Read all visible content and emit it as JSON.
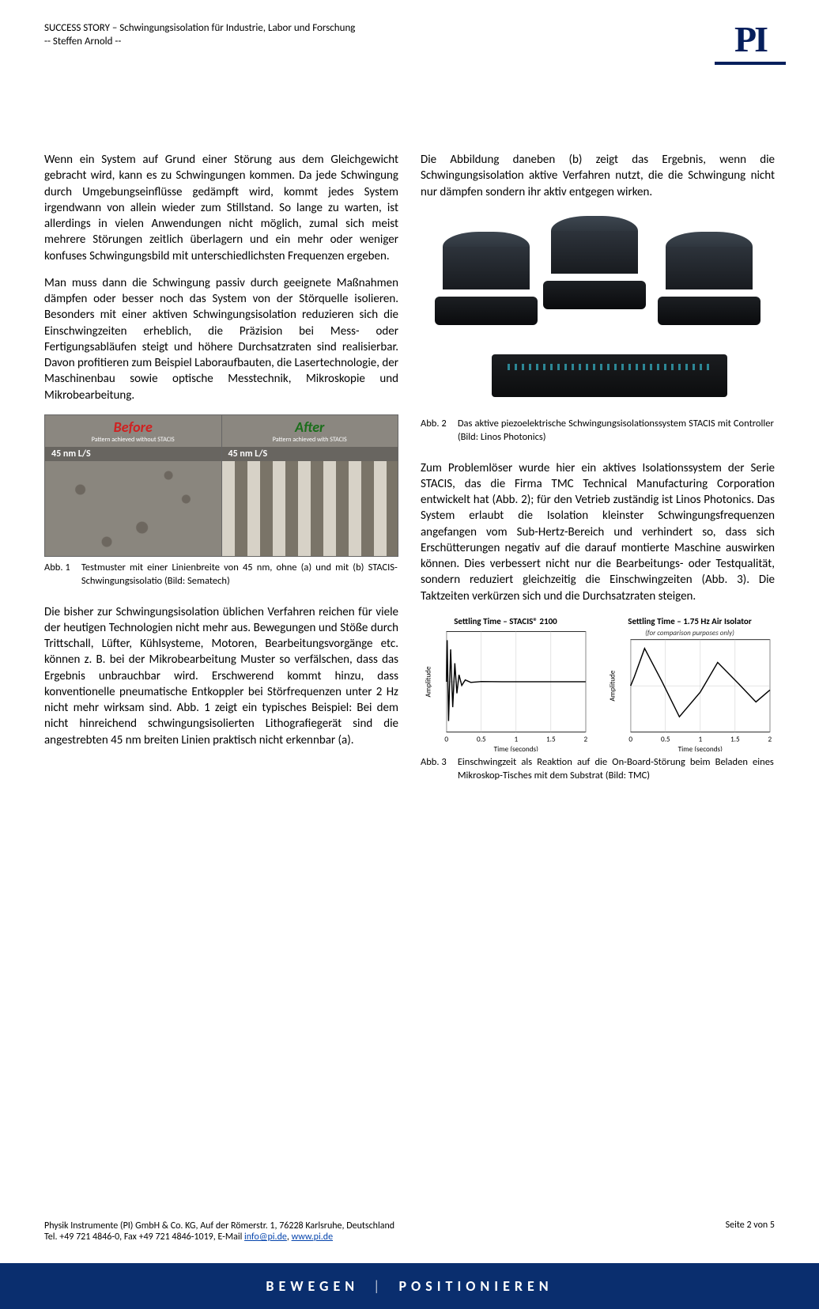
{
  "header": {
    "title": "SUCCESS STORY – Schwingungsisolation für Industrie, Labor und Forschung",
    "author": "-- Steffen Arnold --",
    "logo": "PI"
  },
  "left": {
    "p1": "Wenn ein System auf Grund einer Störung aus dem Gleichgewicht gebracht wird, kann es zu Schwingungen kommen. Da jede Schwingung durch Umgebungseinflüsse gedämpft wird, kommt jedes System irgendwann von allein wieder zum Stillstand. So lange zu warten, ist allerdings in vielen Anwendungen nicht möglich, zumal sich meist mehrere Störungen zeitlich überlagern und ein mehr oder weniger konfuses Schwingungsbild mit unterschiedlichsten Frequenzen ergeben.",
    "p2": "Man muss dann die Schwingung passiv durch geeignete Maßnahmen dämpfen oder besser noch das System von der Störquelle isolieren. Besonders mit einer aktiven Schwingungsisolation reduzieren sich die Einschwingzeiten erheblich, die Präzision bei Mess- oder Fertigungsabläufen steigt und höhere Durchsatzraten sind realisierbar. Davon profitieren zum Beispiel Laboraufbauten, die Lasertechnologie, der Maschinenbau sowie optische Messtechnik, Mikroskopie und Mikrobearbeitung.",
    "fig1": {
      "before_label": "Before",
      "after_label": "After",
      "before_sub": "Pattern achieved without STACIS",
      "after_sub": "Pattern achieved with STACIS",
      "band": "45 nm L/S",
      "caption_label": "Abb. 1",
      "caption_text": "Testmuster mit einer Linienbreite von 45 nm, ohne (a) und mit (b) STACIS-Schwingungsisolatio (Bild: Sematech)"
    },
    "p3": "Die bisher zur Schwingungsisolation üblichen Verfahren reichen für viele der heutigen Technologien nicht mehr aus. Bewegungen und Stöße durch Trittschall, Lüfter, Kühlsysteme, Motoren, Bearbeitungsvorgänge etc. können z. B. bei der Mikrobearbeitung Muster so verfälschen, dass das Ergebnis unbrauchbar wird. Erschwerend kommt hinzu, dass konventionelle pneumatische Entkoppler bei Störfrequenzen unter 2 Hz nicht mehr wirksam sind. Abb. 1 zeigt ein typisches Beispiel: Bei dem nicht hinreichend schwingungsisolierten Lithografiegerät sind die angestrebten 45 nm breiten Linien praktisch nicht erkennbar (a)."
  },
  "right": {
    "p1": "Die Abbildung daneben (b) zeigt das Ergebnis, wenn die Schwingungsisolation aktive Verfahren nutzt, die die Schwingung nicht nur dämpfen sondern ihr aktiv entgegen wirken.",
    "fig2": {
      "caption_label": "Abb. 2",
      "caption_text": "Das aktive piezoelektrische Schwingungsisolationssystem STACIS mit Controller (Bild: Linos Photonics)"
    },
    "p2": "Zum Problemlöser wurde hier ein aktives Isolationssystem der Serie STACIS, das die Firma TMC Technical Manufacturing Corporation entwickelt hat (Abb. 2); für den Vetrieb zuständig ist Linos Photonics. Das System erlaubt die Isolation kleinster Schwingungsfrequenzen angefangen vom Sub-Hertz-Bereich und verhindert so, dass sich Erschütterungen negativ auf die darauf montierte Maschine auswirken können. Dies verbessert nicht nur die Bearbeitungs- oder Testqualität, sondern reduziert gleichzeitig die Einschwingzeiten (Abb. 3). Die Taktzeiten verkürzen sich und die Durchsatzraten steigen.",
    "fig3": {
      "chart_a": {
        "title": "Settling Time – STACIS® 2100",
        "xlabel": "Time (seconds)",
        "ylabel": "Amplitude",
        "xlim": [
          0,
          2.0
        ],
        "xticks": [
          0,
          0.5,
          1.0,
          1.5,
          2.0
        ],
        "line_color": "#000000",
        "line_width": 1.4,
        "background": "#ffffff",
        "grid_color": "#cccccc",
        "points": [
          [
            0,
            0
          ],
          [
            0.01,
            0.9
          ],
          [
            0.03,
            -0.85
          ],
          [
            0.06,
            0.7
          ],
          [
            0.09,
            -0.55
          ],
          [
            0.12,
            0.4
          ],
          [
            0.15,
            -0.25
          ],
          [
            0.18,
            0.15
          ],
          [
            0.22,
            -0.08
          ],
          [
            0.27,
            0.04
          ],
          [
            0.35,
            -0.015
          ],
          [
            0.5,
            0.005
          ],
          [
            0.8,
            0
          ],
          [
            2.0,
            0
          ]
        ]
      },
      "chart_b": {
        "title": "Settling Time – 1.75 Hz Air Isolator",
        "note": "(for comparison purposes only)",
        "xlabel": "Time (seconds)",
        "ylabel": "Amplitude",
        "xlim": [
          0,
          2.0
        ],
        "xticks": [
          0,
          0.5,
          1.0,
          1.5,
          2.0
        ],
        "line_color": "#000000",
        "line_width": 1.4,
        "background": "#ffffff",
        "grid_color": "#cccccc",
        "points": [
          [
            0,
            0
          ],
          [
            0.05,
            0.2
          ],
          [
            0.2,
            0.88
          ],
          [
            0.45,
            0.1
          ],
          [
            0.7,
            -0.73
          ],
          [
            1.0,
            -0.15
          ],
          [
            1.25,
            0.55
          ],
          [
            1.55,
            0.05
          ],
          [
            1.8,
            -0.38
          ],
          [
            2.0,
            -0.1
          ]
        ]
      },
      "caption_label": "Abb. 3",
      "caption_text": "Einschwingzeit als Reaktion auf die On-Board-Störung beim Beladen eines Mikroskop-Tisches mit dem Substrat (Bild: TMC)"
    }
  },
  "footer": {
    "line1_a": "Physik Instrumente (PI) GmbH & Co. KG, Auf der Römerstr. 1, 76228 Karlsruhe, Deutschland",
    "line2_a": "Tel. +49 721 4846-0, Fax +49 721 4846-1019, E-Mail ",
    "email": "info@pi.de",
    "sep": ", ",
    "url": "www.pi.de",
    "page": "Seite 2 von 5"
  },
  "bluebar": {
    "left": "BEWEGEN",
    "right": "POSITIONIEREN",
    "sep": "|"
  }
}
